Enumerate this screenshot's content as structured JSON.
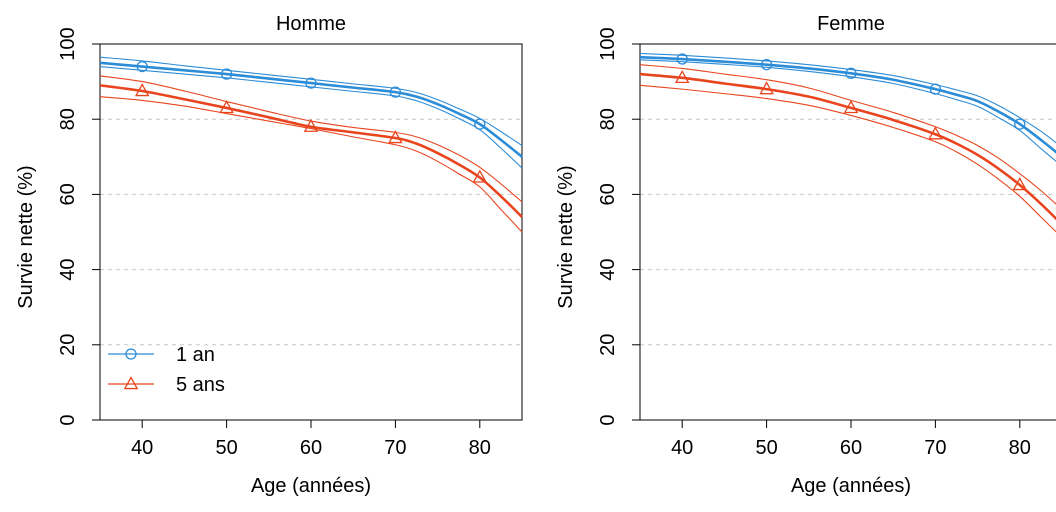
{
  "chart_data": [
    {
      "type": "line",
      "title": "Homme",
      "xlabel": "Age (années)",
      "ylabel": "Survie nette (%)",
      "xlim": [
        35,
        85
      ],
      "ylim": [
        0,
        100
      ],
      "xticks": [
        "40",
        "50",
        "60",
        "70",
        "80"
      ],
      "yticks": [
        "0",
        "20",
        "40",
        "60",
        "80",
        "100"
      ],
      "grid": "horizontal-dashed",
      "legend_position": "bottom-left",
      "series": [
        {
          "name": "1 an",
          "color": "#2b8cd8",
          "marker": "circle",
          "marker_x": [
            40,
            50,
            60,
            70,
            80
          ],
          "x": [
            35,
            40,
            45,
            50,
            55,
            60,
            65,
            70,
            72.5,
            75,
            77.5,
            80,
            82.5,
            85
          ],
          "y": [
            95.0,
            94.0,
            93.0,
            92.0,
            90.8,
            89.6,
            88.4,
            87.2,
            86.0,
            84.0,
            81.5,
            78.7,
            74.5,
            70.0
          ],
          "lower": [
            94.0,
            93.0,
            92.0,
            91.0,
            89.8,
            88.6,
            87.4,
            86.2,
            84.9,
            82.8,
            80.2,
            77.2,
            72.3,
            67.0
          ],
          "upper": [
            96.5,
            95.5,
            94.2,
            93.0,
            91.8,
            90.6,
            89.4,
            88.2,
            87.1,
            85.2,
            82.8,
            80.2,
            76.7,
            73.0
          ]
        },
        {
          "name": "5 ans",
          "color": "#e8451e",
          "marker": "triangle",
          "marker_x": [
            40,
            50,
            60,
            70,
            80
          ],
          "x": [
            35,
            40,
            45,
            50,
            55,
            60,
            65,
            70,
            72.5,
            75,
            77.5,
            80,
            82.5,
            85
          ],
          "y": [
            89.0,
            87.5,
            85.3,
            83.0,
            80.5,
            78.0,
            76.5,
            75.0,
            73.5,
            71.0,
            68.0,
            64.5,
            59.5,
            54.0
          ],
          "lower": [
            86.0,
            85.0,
            83.5,
            81.5,
            79.5,
            77.5,
            75.3,
            73.2,
            71.5,
            68.8,
            65.5,
            62.0,
            56.0,
            50.0
          ],
          "upper": [
            91.5,
            90.0,
            87.5,
            84.7,
            82.0,
            79.5,
            77.8,
            76.5,
            75.3,
            73.2,
            70.5,
            67.2,
            62.8,
            58.0
          ]
        }
      ]
    },
    {
      "type": "line",
      "title": "Femme",
      "xlabel": "Age (années)",
      "ylabel": "Survie nette (%)",
      "xlim": [
        35,
        85
      ],
      "ylim": [
        0,
        100
      ],
      "xticks": [
        "40",
        "50",
        "60",
        "70",
        "80"
      ],
      "yticks": [
        "0",
        "20",
        "40",
        "60",
        "80",
        "100"
      ],
      "grid": "horizontal-dashed",
      "series": [
        {
          "name": "1 an",
          "color": "#2b8cd8",
          "marker": "circle",
          "marker_x": [
            40,
            50,
            60,
            70,
            80
          ],
          "x": [
            35,
            40,
            45,
            50,
            55,
            60,
            65,
            70,
            72.5,
            75,
            77.5,
            80,
            82.5,
            85
          ],
          "y": [
            96.5,
            96.0,
            95.3,
            94.5,
            93.5,
            92.2,
            90.5,
            88.0,
            86.5,
            84.8,
            82.0,
            78.7,
            74.5,
            70.0
          ],
          "lower": [
            95.8,
            95.3,
            94.6,
            93.8,
            92.7,
            91.3,
            89.5,
            86.8,
            85.2,
            83.4,
            80.4,
            77.0,
            72.2,
            67.5
          ],
          "upper": [
            97.5,
            97.0,
            96.3,
            95.5,
            94.5,
            93.2,
            91.6,
            89.2,
            87.8,
            86.2,
            83.6,
            80.4,
            76.8,
            72.5
          ]
        },
        {
          "name": "5 ans",
          "color": "#e8451e",
          "marker": "triangle",
          "marker_x": [
            40,
            50,
            60,
            70,
            80
          ],
          "x": [
            35,
            40,
            45,
            50,
            55,
            60,
            65,
            70,
            72.5,
            75,
            77.5,
            80,
            82.5,
            85
          ],
          "y": [
            92.0,
            91.0,
            89.5,
            88.0,
            86.0,
            83.0,
            79.8,
            76.0,
            73.5,
            70.5,
            66.8,
            62.5,
            57.5,
            52.0
          ],
          "lower": [
            89.0,
            88.0,
            86.8,
            85.5,
            83.7,
            81.0,
            77.8,
            74.0,
            71.3,
            68.0,
            64.0,
            59.5,
            54.0,
            48.5
          ],
          "upper": [
            94.5,
            93.5,
            92.0,
            90.5,
            88.3,
            85.0,
            81.8,
            78.0,
            75.7,
            73.0,
            69.6,
            65.5,
            61.0,
            56.0
          ]
        }
      ]
    }
  ]
}
